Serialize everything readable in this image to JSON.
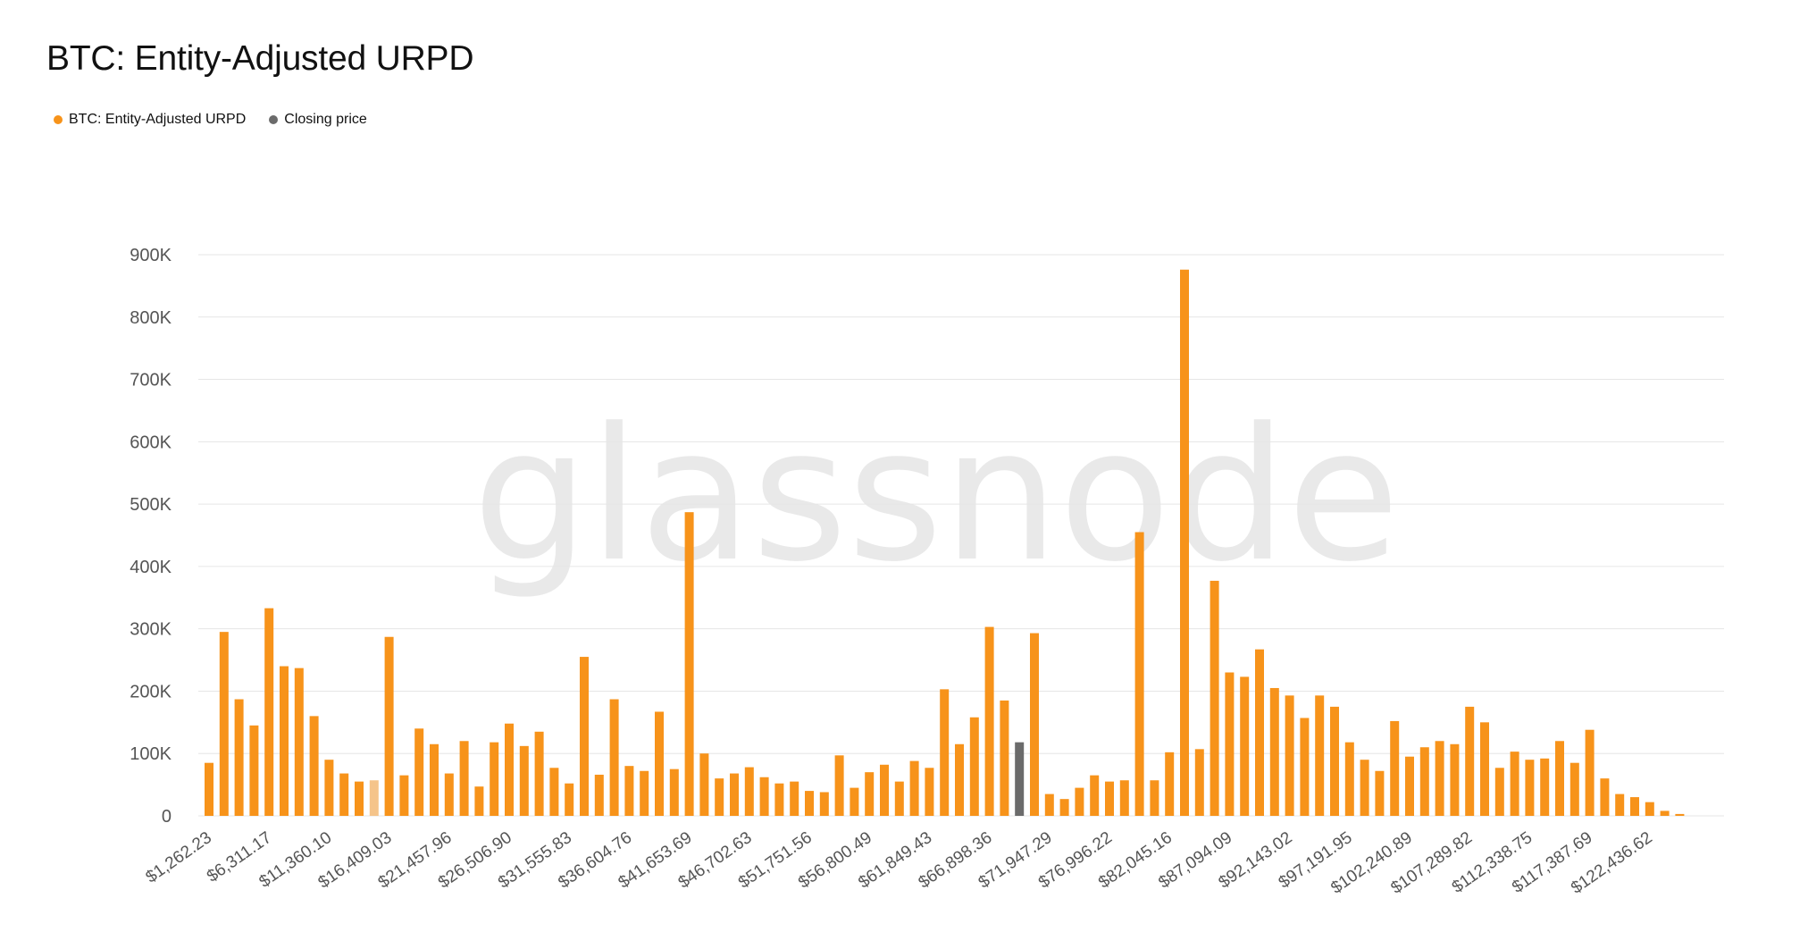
{
  "title": "BTC: Entity-Adjusted URPD",
  "legend": {
    "items": [
      {
        "label": "BTC: Entity-Adjusted URPD",
        "color": "#f7931a"
      },
      {
        "label": "Closing price",
        "color": "#6b6b6b"
      }
    ]
  },
  "watermark": "glassnode",
  "colors": {
    "bar": "#f7931a",
    "bar_faded": "#f5c48a",
    "closing_bar": "#6b6b6b",
    "grid": "#e6e6e6",
    "axis_text": "#555555"
  },
  "chart_data": {
    "type": "bar",
    "ylim": [
      0,
      900000
    ],
    "y_ticks": [
      0,
      100000,
      200000,
      300000,
      400000,
      500000,
      600000,
      700000,
      800000,
      900000
    ],
    "y_tick_labels": [
      "0",
      "100K",
      "200K",
      "300K",
      "400K",
      "500K",
      "600K",
      "700K",
      "800K",
      "900K"
    ],
    "x_tick_labels": [
      "$1,262.23",
      "$6,311.17",
      "$11,360.10",
      "$16,409.03",
      "$21,457.96",
      "$26,506.90",
      "$31,555.83",
      "$36,604.76",
      "$41,653.69",
      "$46,702.63",
      "$51,751.56",
      "$56,800.49",
      "$61,849.43",
      "$66,898.36",
      "$71,947.29",
      "$76,996.22",
      "$82,045.16",
      "$87,094.09",
      "$92,143.02",
      "$97,191.95",
      "$102,240.89",
      "$107,289.82",
      "$112,338.75",
      "$117,387.69",
      "$122,436.62"
    ],
    "x_tick_every": 4,
    "closing_price_index": 54,
    "faded_index": 11,
    "values": [
      85000,
      295000,
      187000,
      145000,
      333000,
      240000,
      237000,
      160000,
      90000,
      68000,
      55000,
      57000,
      287000,
      65000,
      140000,
      115000,
      68000,
      120000,
      47000,
      118000,
      148000,
      112000,
      135000,
      77000,
      52000,
      255000,
      66000,
      187000,
      80000,
      72000,
      167000,
      75000,
      487000,
      100000,
      60000,
      68000,
      78000,
      62000,
      52000,
      55000,
      40000,
      38000,
      97000,
      45000,
      70000,
      82000,
      55000,
      88000,
      77000,
      203000,
      115000,
      158000,
      303000,
      185000,
      118000,
      293000,
      35000,
      27000,
      45000,
      65000,
      55000,
      57000,
      455000,
      57000,
      102000,
      876000,
      107000,
      377000,
      230000,
      223000,
      267000,
      205000,
      193000,
      157000,
      193000,
      175000,
      118000,
      90000,
      72000,
      152000,
      95000,
      110000,
      120000,
      115000,
      175000,
      150000,
      77000,
      103000,
      90000,
      92000,
      120000,
      85000,
      138000,
      60000,
      35000,
      30000,
      22000,
      8000,
      3000
    ]
  }
}
